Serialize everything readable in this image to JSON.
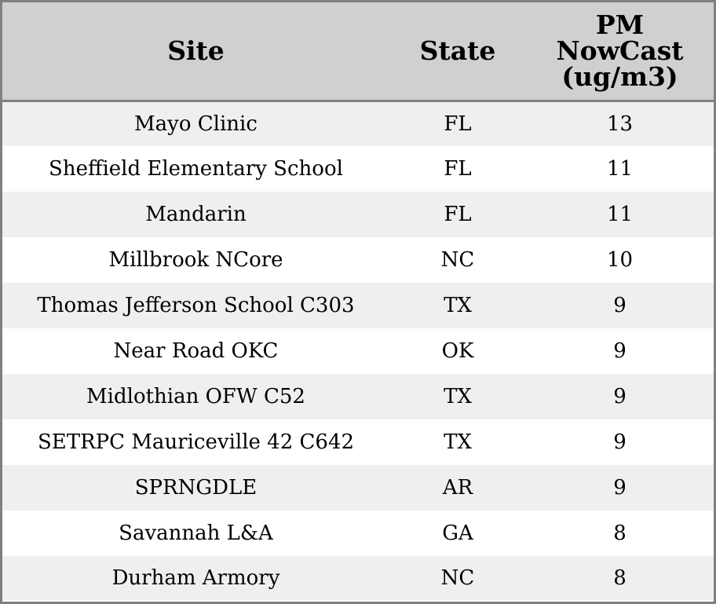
{
  "chart_data": {
    "type": "table",
    "columns": {
      "site": "Site",
      "state": "State",
      "pm": [
        "PM",
        "NowCast",
        "(ug/m3)"
      ]
    },
    "rows": [
      {
        "site": "Mayo Clinic",
        "state": "FL",
        "pm": 13
      },
      {
        "site": "Sheffield Elementary School",
        "state": "FL",
        "pm": 11
      },
      {
        "site": "Mandarin",
        "state": "FL",
        "pm": 11
      },
      {
        "site": "Millbrook NCore",
        "state": "NC",
        "pm": 10
      },
      {
        "site": "Thomas Jefferson School C303",
        "state": "TX",
        "pm": 9
      },
      {
        "site": "Near Road OKC",
        "state": "OK",
        "pm": 9
      },
      {
        "site": "Midlothian OFW C52",
        "state": "TX",
        "pm": 9
      },
      {
        "site": "SETRPC Mauriceville 42 C642",
        "state": "TX",
        "pm": 9
      },
      {
        "site": "SPRNGDLE",
        "state": "AR",
        "pm": 9
      },
      {
        "site": "Savannah L&A",
        "state": "GA",
        "pm": 8
      },
      {
        "site": "Durham Armory",
        "state": "NC",
        "pm": 8
      }
    ],
    "colors": {
      "header_background": "#d0d0d0",
      "row_shaded": "#efefef",
      "row_plain": "#ffffff",
      "border": "#808080"
    }
  }
}
